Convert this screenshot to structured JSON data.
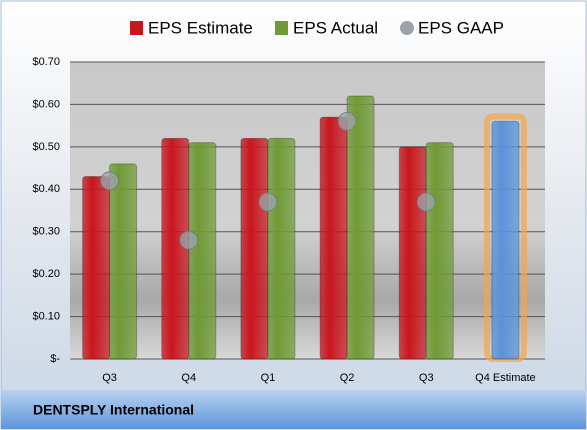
{
  "chart_data": {
    "type": "bar",
    "footer": "DENTSPLY International",
    "categories": [
      "Q3",
      "Q4",
      "Q1",
      "Q2",
      "Q3",
      "Q4 Estimate"
    ],
    "series": [
      {
        "name": "EPS Estimate",
        "color": "#c8161d",
        "mark": "bar",
        "values": [
          0.43,
          0.52,
          0.52,
          0.57,
          0.5,
          0.56
        ]
      },
      {
        "name": "EPS Actual",
        "color": "#6f9a35",
        "mark": "bar",
        "values": [
          0.46,
          0.51,
          0.52,
          0.62,
          0.51,
          null
        ]
      },
      {
        "name": "EPS GAAP",
        "color": "#9aa3ad",
        "mark": "dot",
        "values": [
          0.42,
          0.28,
          0.37,
          0.56,
          0.37,
          null
        ]
      }
    ],
    "highlight": {
      "index": 5,
      "color": "#5b93d8",
      "glow": "#f5a54a"
    },
    "ylim": [
      0,
      0.7
    ],
    "yticks": [
      {
        "value": 0,
        "label": "$-"
      },
      {
        "value": 0.1,
        "label": "$0.10"
      },
      {
        "value": 0.2,
        "label": "$0.20"
      },
      {
        "value": 0.3,
        "label": "$0.30"
      },
      {
        "value": 0.4,
        "label": "$0.40"
      },
      {
        "value": 0.5,
        "label": "$0.50"
      },
      {
        "value": 0.6,
        "label": "$0.60"
      },
      {
        "value": 0.7,
        "label": "$0.70"
      }
    ],
    "grid": true
  }
}
